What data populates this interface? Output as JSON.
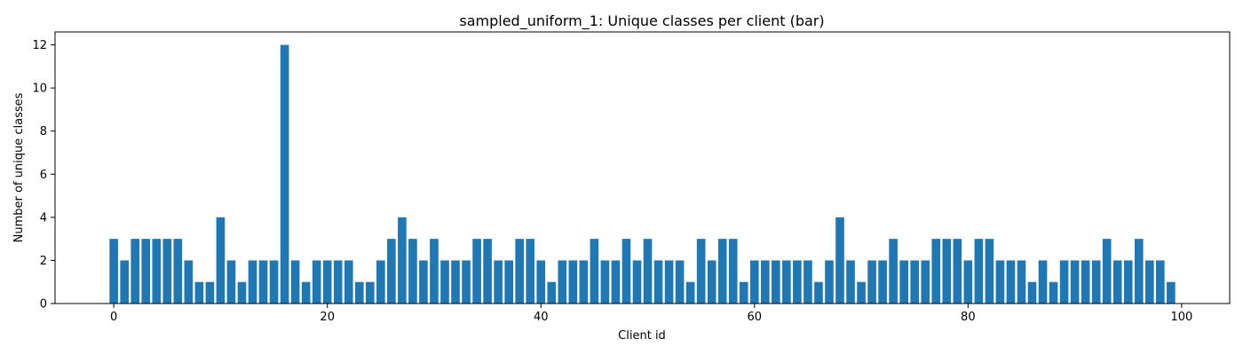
{
  "chart_data": {
    "type": "bar",
    "title": "sampled_uniform_1: Unique classes per client (bar)",
    "xlabel": "Client id",
    "ylabel": "Number of unique classes",
    "x": [
      0,
      1,
      2,
      3,
      4,
      5,
      6,
      7,
      8,
      9,
      10,
      11,
      12,
      13,
      14,
      15,
      16,
      17,
      18,
      19,
      20,
      21,
      22,
      23,
      24,
      25,
      26,
      27,
      28,
      29,
      30,
      31,
      32,
      33,
      34,
      35,
      36,
      37,
      38,
      39,
      40,
      41,
      42,
      43,
      44,
      45,
      46,
      47,
      48,
      49,
      50,
      51,
      52,
      53,
      54,
      55,
      56,
      57,
      58,
      59,
      60,
      61,
      62,
      63,
      64,
      65,
      66,
      67,
      68,
      69,
      70,
      71,
      72,
      73,
      74,
      75,
      76,
      77,
      78,
      79,
      80,
      81,
      82,
      83,
      84,
      85,
      86,
      87,
      88,
      89,
      90,
      91,
      92,
      93,
      94,
      95,
      96,
      97,
      98,
      99
    ],
    "values": [
      3,
      2,
      3,
      3,
      3,
      3,
      3,
      2,
      1,
      1,
      4,
      2,
      1,
      2,
      2,
      2,
      12,
      2,
      1,
      2,
      2,
      2,
      2,
      1,
      1,
      2,
      3,
      4,
      3,
      2,
      3,
      2,
      2,
      2,
      3,
      3,
      2,
      2,
      3,
      3,
      2,
      1,
      2,
      2,
      2,
      3,
      2,
      2,
      3,
      2,
      3,
      2,
      2,
      2,
      1,
      3,
      2,
      3,
      3,
      1,
      2,
      2,
      2,
      2,
      2,
      2,
      1,
      2,
      4,
      2,
      1,
      2,
      2,
      3,
      2,
      2,
      2,
      3,
      3,
      3,
      2,
      3,
      3,
      2,
      2,
      2,
      1,
      2,
      1,
      2,
      2,
      2,
      2,
      3,
      2,
      2,
      3,
      2,
      2,
      1
    ],
    "xlim": [
      -5.5,
      104.5
    ],
    "ylim": [
      0,
      12.6
    ],
    "xticks": [
      0,
      20,
      40,
      60,
      80,
      100
    ],
    "yticks": [
      0,
      2,
      4,
      6,
      8,
      10,
      12
    ],
    "bar_color": "#1f77b4",
    "grid": false,
    "legend": "none"
  }
}
